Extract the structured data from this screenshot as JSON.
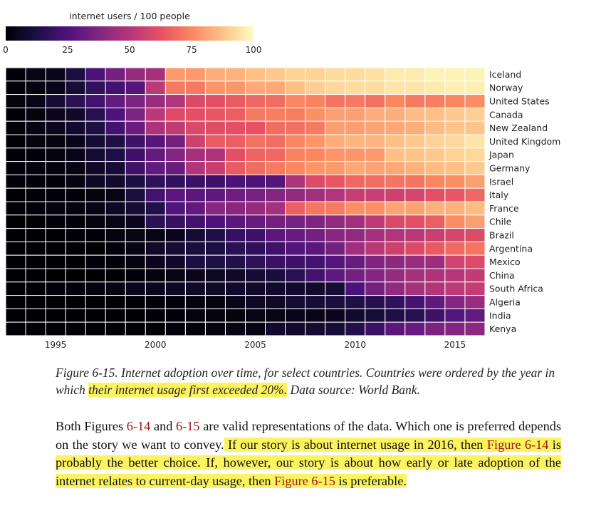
{
  "chart_data": {
    "type": "heatmap",
    "colorbar": {
      "title": "internet users / 100 people",
      "ticks": [
        0,
        25,
        50,
        75,
        100
      ],
      "range": [
        0,
        100
      ]
    },
    "x_ticks": [
      1995,
      2000,
      2005,
      2010,
      2015
    ],
    "years": [
      1993,
      1994,
      1995,
      1996,
      1997,
      1998,
      1999,
      2000,
      2001,
      2002,
      2003,
      2004,
      2005,
      2006,
      2007,
      2008,
      2009,
      2010,
      2011,
      2012,
      2013,
      2014,
      2015,
      2016
    ],
    "rows": [
      {
        "country": "Iceland",
        "values": [
          1,
          3,
          5,
          12,
          24,
          34,
          42,
          46,
          79,
          79,
          83,
          84,
          87,
          89,
          91,
          91,
          93,
          93,
          94,
          96,
          96,
          98,
          98,
          98
        ]
      },
      {
        "country": "Norway",
        "values": [
          1,
          2,
          4,
          10,
          18,
          22,
          27,
          52,
          72,
          72,
          78,
          78,
          82,
          82,
          87,
          90,
          92,
          93,
          93,
          95,
          95,
          96,
          97,
          97
        ]
      },
      {
        "country": "United States",
        "values": [
          2,
          4,
          9,
          16,
          22,
          30,
          36,
          43,
          49,
          59,
          62,
          65,
          68,
          69,
          75,
          74,
          71,
          72,
          70,
          75,
          72,
          73,
          75,
          76
        ]
      },
      {
        "country": "Canada",
        "values": [
          1,
          2,
          5,
          7,
          15,
          25,
          36,
          51,
          60,
          62,
          64,
          66,
          72,
          73,
          73,
          77,
          80,
          80,
          83,
          83,
          86,
          87,
          89,
          90
        ]
      },
      {
        "country": "New Zealand",
        "values": [
          1,
          3,
          5,
          8,
          13,
          22,
          32,
          48,
          53,
          59,
          61,
          62,
          63,
          69,
          70,
          72,
          80,
          80,
          81,
          82,
          83,
          86,
          88,
          88
        ]
      },
      {
        "country": "United Kingdom",
        "values": [
          1,
          2,
          2,
          4,
          9,
          13,
          21,
          27,
          34,
          56,
          65,
          66,
          70,
          69,
          75,
          78,
          83,
          85,
          85,
          87,
          89,
          91,
          92,
          95
        ]
      },
      {
        "country": "Japan",
        "values": [
          1,
          1,
          2,
          4,
          9,
          13,
          21,
          30,
          38,
          46,
          48,
          62,
          67,
          68,
          74,
          75,
          78,
          78,
          79,
          87,
          88,
          89,
          91,
          92
        ]
      },
      {
        "country": "Germany",
        "values": [
          1,
          2,
          2,
          3,
          7,
          10,
          21,
          30,
          32,
          49,
          55,
          65,
          69,
          72,
          75,
          78,
          79,
          82,
          81,
          82,
          84,
          86,
          87,
          89
        ]
      },
      {
        "country": "Israel",
        "values": [
          1,
          1,
          1,
          2,
          6,
          8,
          12,
          17,
          18,
          20,
          21,
          24,
          25,
          26,
          48,
          60,
          64,
          68,
          69,
          71,
          71,
          75,
          77,
          80
        ]
      },
      {
        "country": "Italy",
        "values": [
          0,
          1,
          1,
          1,
          2,
          3,
          12,
          22,
          28,
          28,
          29,
          33,
          35,
          38,
          41,
          45,
          49,
          54,
          55,
          56,
          58,
          62,
          64,
          68
        ]
      },
      {
        "country": "France",
        "values": [
          1,
          1,
          2,
          2,
          3,
          6,
          9,
          14,
          26,
          30,
          39,
          39,
          42,
          46,
          66,
          71,
          72,
          77,
          77,
          81,
          81,
          84,
          84,
          86
        ]
      },
      {
        "country": "Chile",
        "values": [
          0,
          0,
          1,
          1,
          2,
          3,
          5,
          16,
          19,
          22,
          25,
          28,
          31,
          34,
          35,
          37,
          41,
          45,
          52,
          59,
          62,
          66,
          76,
          80
        ]
      },
      {
        "country": "Brazil",
        "values": [
          0,
          0,
          0,
          1,
          1,
          2,
          3,
          3,
          5,
          9,
          13,
          19,
          21,
          28,
          31,
          34,
          39,
          41,
          46,
          49,
          51,
          55,
          58,
          60
        ]
      },
      {
        "country": "Argentina",
        "values": [
          0,
          0,
          0,
          0,
          0,
          1,
          3,
          7,
          10,
          11,
          12,
          16,
          18,
          21,
          26,
          28,
          34,
          45,
          51,
          56,
          60,
          65,
          68,
          71
        ]
      },
      {
        "country": "Mexico",
        "values": [
          0,
          0,
          0,
          0,
          1,
          1,
          2,
          5,
          7,
          12,
          13,
          14,
          17,
          20,
          21,
          22,
          26,
          31,
          37,
          40,
          43,
          44,
          57,
          60
        ]
      },
      {
        "country": "China",
        "values": [
          0,
          0,
          0,
          0,
          0,
          0,
          1,
          2,
          3,
          5,
          6,
          7,
          9,
          11,
          16,
          22,
          29,
          34,
          38,
          42,
          46,
          48,
          50,
          53
        ]
      },
      {
        "country": "South Africa",
        "values": [
          0,
          0,
          1,
          1,
          2,
          3,
          5,
          5,
          6,
          7,
          7,
          8,
          8,
          8,
          8,
          8,
          10,
          24,
          34,
          41,
          46,
          49,
          52,
          54
        ]
      },
      {
        "country": "Algeria",
        "values": [
          0,
          0,
          0,
          0,
          0,
          0,
          0,
          1,
          1,
          2,
          2,
          4,
          6,
          7,
          9,
          10,
          11,
          13,
          15,
          18,
          23,
          29,
          38,
          43
        ]
      },
      {
        "country": "India",
        "values": [
          0,
          0,
          0,
          0,
          0,
          0,
          0,
          1,
          1,
          2,
          2,
          2,
          3,
          3,
          4,
          4,
          5,
          8,
          10,
          13,
          15,
          21,
          26,
          30
        ]
      },
      {
        "country": "Kenya",
        "values": [
          0,
          0,
          0,
          0,
          0,
          0,
          0,
          0,
          1,
          1,
          2,
          3,
          3,
          8,
          8,
          9,
          10,
          14,
          20,
          28,
          31,
          36,
          38,
          40
        ]
      }
    ]
  },
  "caption": {
    "prefix": "Figure 6-15. Internet adoption over time, for select countries. Countries were ordered by the year in which ",
    "highlight": "their internet usage first exceeded 20%.",
    "suffix": " Data source: World Bank."
  },
  "body": {
    "t1": "Both Figures ",
    "ref1": "6-14",
    "t2": " and ",
    "ref2": "6-15",
    "t3": " are valid representations of the data. Which one is preferred depends on the story we want to convey.",
    "h1": " If our story is about internet usage in 2016, then ",
    "ref3": "Figure 6-14",
    "h2": " is probably the better choice. If, however, our story is about how early or late adoption of the internet relates to current-day usage, then ",
    "ref4": "Figure 6-15",
    "h3": " is preferable."
  }
}
